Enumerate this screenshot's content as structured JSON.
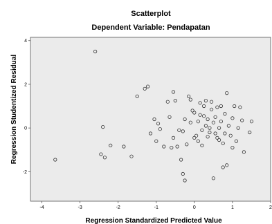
{
  "chart_data": {
    "type": "scatter",
    "title": "Scatterplot",
    "subtitle": "Dependent Variable: Pendapatan",
    "xlabel": "Regression Standardized Predicted Value",
    "ylabel": "Regression Studentized Residual",
    "xlim": [
      -4.3,
      2.0
    ],
    "ylim": [
      -3.35,
      4.15
    ],
    "xticks": [
      -4,
      -3,
      -2,
      -1,
      0,
      1,
      2
    ],
    "yticks": [
      -2,
      0,
      2,
      4
    ],
    "grid": false,
    "colors": {
      "plot_background": "#ebebeb",
      "marker_stroke": "#333333",
      "axis": "#555555"
    },
    "points": [
      {
        "x": -3.65,
        "y": -1.45
      },
      {
        "x": -2.6,
        "y": 3.5
      },
      {
        "x": -2.4,
        "y": 0.05
      },
      {
        "x": -2.45,
        "y": -1.2
      },
      {
        "x": -2.35,
        "y": -1.35
      },
      {
        "x": -2.2,
        "y": -0.8
      },
      {
        "x": -1.85,
        "y": -0.85
      },
      {
        "x": -1.65,
        "y": -1.3
      },
      {
        "x": -1.5,
        "y": 1.45
      },
      {
        "x": -1.3,
        "y": 1.8
      },
      {
        "x": -1.22,
        "y": 1.9
      },
      {
        "x": -1.15,
        "y": -0.25
      },
      {
        "x": -1.05,
        "y": 0.4
      },
      {
        "x": -1.0,
        "y": -0.6
      },
      {
        "x": -0.95,
        "y": 0.2
      },
      {
        "x": -0.9,
        "y": -0.05
      },
      {
        "x": -0.8,
        "y": -0.85
      },
      {
        "x": -0.7,
        "y": 1.2
      },
      {
        "x": -0.65,
        "y": 0.5
      },
      {
        "x": -0.6,
        "y": -0.9
      },
      {
        "x": -0.55,
        "y": 1.65
      },
      {
        "x": -0.5,
        "y": 1.25
      },
      {
        "x": -0.45,
        "y": -0.85
      },
      {
        "x": -0.4,
        "y": -0.1
      },
      {
        "x": -0.35,
        "y": -1.45
      },
      {
        "x": -0.3,
        "y": -0.15
      },
      {
        "x": -0.3,
        "y": -2.1
      },
      {
        "x": -0.25,
        "y": -2.4
      },
      {
        "x": -0.25,
        "y": 0.4
      },
      {
        "x": -0.2,
        "y": -0.75
      },
      {
        "x": -0.15,
        "y": 1.45
      },
      {
        "x": -0.1,
        "y": 1.3
      },
      {
        "x": -0.05,
        "y": 0.8
      },
      {
        "x": 0.0,
        "y": -0.45
      },
      {
        "x": 0.0,
        "y": 0.7
      },
      {
        "x": 0.05,
        "y": -0.35
      },
      {
        "x": 0.1,
        "y": 0.3
      },
      {
        "x": 0.1,
        "y": -0.6
      },
      {
        "x": 0.15,
        "y": 1.15
      },
      {
        "x": 0.2,
        "y": -0.1
      },
      {
        "x": 0.2,
        "y": -0.8
      },
      {
        "x": 0.25,
        "y": 1.0
      },
      {
        "x": 0.25,
        "y": 0.55
      },
      {
        "x": 0.3,
        "y": 0.1
      },
      {
        "x": 0.3,
        "y": 1.25
      },
      {
        "x": 0.35,
        "y": -0.4
      },
      {
        "x": 0.35,
        "y": 0.4
      },
      {
        "x": 0.4,
        "y": 0.0
      },
      {
        "x": 0.4,
        "y": -0.2
      },
      {
        "x": 0.45,
        "y": 0.85
      },
      {
        "x": 0.45,
        "y": 1.2
      },
      {
        "x": 0.5,
        "y": -2.3
      },
      {
        "x": 0.5,
        "y": 0.25
      },
      {
        "x": 0.55,
        "y": -0.25
      },
      {
        "x": 0.55,
        "y": 0.5
      },
      {
        "x": 0.6,
        "y": -0.45
      },
      {
        "x": 0.6,
        "y": 0.95
      },
      {
        "x": 0.65,
        "y": 0.0
      },
      {
        "x": 0.65,
        "y": -0.55
      },
      {
        "x": 0.7,
        "y": 0.3
      },
      {
        "x": 0.7,
        "y": 1.0
      },
      {
        "x": 0.75,
        "y": -0.7
      },
      {
        "x": 0.75,
        "y": -1.8
      },
      {
        "x": 0.8,
        "y": 0.65
      },
      {
        "x": 0.8,
        "y": -0.25
      },
      {
        "x": 0.85,
        "y": 1.6
      },
      {
        "x": 0.85,
        "y": -1.7
      },
      {
        "x": 0.9,
        "y": 0.1
      },
      {
        "x": 0.95,
        "y": -0.35
      },
      {
        "x": 1.0,
        "y": 0.45
      },
      {
        "x": 1.05,
        "y": 1.0
      },
      {
        "x": 1.1,
        "y": -0.6
      },
      {
        "x": 1.15,
        "y": 0.0
      },
      {
        "x": 1.2,
        "y": 0.95
      },
      {
        "x": 1.25,
        "y": 0.35
      },
      {
        "x": 1.3,
        "y": -1.1
      },
      {
        "x": 1.45,
        "y": -0.2
      },
      {
        "x": 1.5,
        "y": 0.3
      },
      {
        "x": -0.1,
        "y": 0.25
      },
      {
        "x": 0.15,
        "y": 0.6
      },
      {
        "x": -0.55,
        "y": -0.45
      },
      {
        "x": 1.0,
        "y": -0.9
      }
    ]
  }
}
